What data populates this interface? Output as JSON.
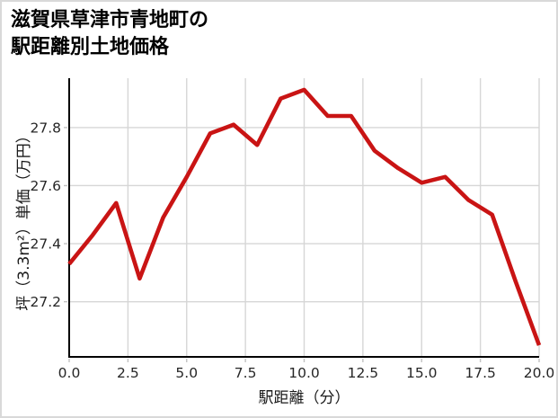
{
  "header": {
    "title_line1": "滋賀県草津市青地町の",
    "title_line2": "駅距離別土地価格"
  },
  "chart_data": {
    "type": "line",
    "title": "滋賀県草津市青地町の駅距離別土地価格",
    "xlabel": "駅距離（分）",
    "ylabel": "坪（3.3m²）単価（万円）",
    "x": [
      0,
      1,
      2,
      3,
      4,
      5,
      6,
      7,
      8,
      9,
      10,
      11,
      12,
      13,
      14,
      15,
      16,
      17,
      18,
      19,
      20
    ],
    "values": [
      27.33,
      27.43,
      27.54,
      27.28,
      27.49,
      27.63,
      27.78,
      27.81,
      27.74,
      27.9,
      27.93,
      27.84,
      27.84,
      27.72,
      27.66,
      27.61,
      27.63,
      27.55,
      27.5,
      27.27,
      27.05
    ],
    "xlim": [
      0,
      20
    ],
    "ylim": [
      27.01,
      27.97
    ],
    "x_ticks": [
      0,
      2.5,
      5,
      7.5,
      10,
      12.5,
      15,
      17.5,
      20
    ],
    "x_tick_labels": [
      "0.0",
      "2.5",
      "5.0",
      "7.5",
      "10.0",
      "12.5",
      "15.0",
      "17.5",
      "20.0"
    ],
    "y_ticks": [
      27.2,
      27.4,
      27.6,
      27.8
    ],
    "y_tick_labels": [
      "27.2",
      "27.4",
      "27.6",
      "27.8"
    ],
    "grid": true,
    "legend": "none",
    "line_color": "#c91414",
    "line_width": 4.6,
    "grid_color": "#d6d6d6",
    "spine_color": "#000000",
    "tick_color": "#c2c2c2"
  }
}
